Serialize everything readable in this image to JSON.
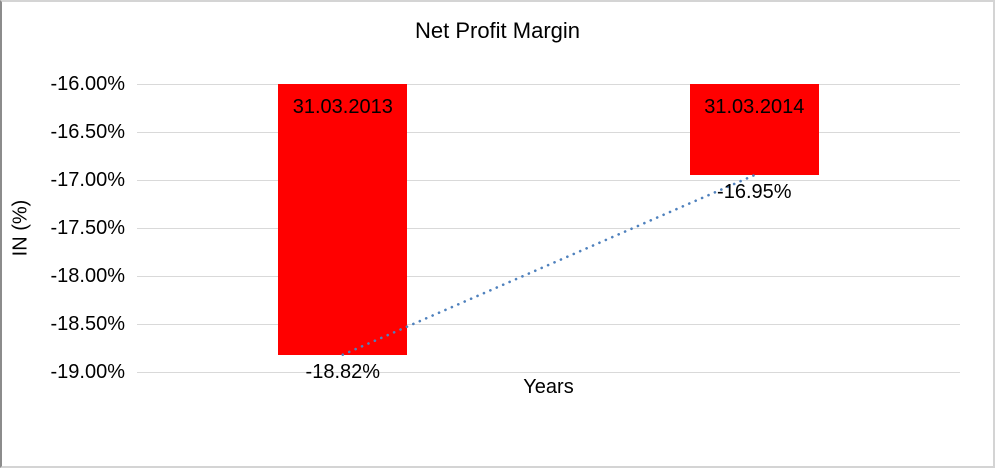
{
  "window": {
    "background": "#ffffff",
    "frame_border_color": "#d4d4d4"
  },
  "chart_data": {
    "type": "bar",
    "title": "Net Profit Margin",
    "xlabel": "Years",
    "ylabel": "IN (%)",
    "categories": [
      "31.03.2013",
      "31.03.2014"
    ],
    "series": [
      {
        "name": "Net Profit Margin",
        "values": [
          -18.82,
          -16.95
        ]
      }
    ],
    "value_labels": [
      "-18.82%",
      "-16.95%"
    ],
    "ylim": [
      -19.0,
      -16.0
    ],
    "ytick_step": 0.5,
    "ytick_labels": [
      "-16.00%",
      "-16.50%",
      "-17.00%",
      "-17.50%",
      "-18.00%",
      "-18.50%",
      "-19.00%"
    ],
    "grid": "horizontal",
    "gridline_color": "#d9d9d9",
    "bar_color": "#ff0000",
    "legend": "none",
    "trendline": {
      "type": "linear",
      "style": "dotted",
      "color": "#4f81bd",
      "from_value": -18.82,
      "to_value": -16.95
    }
  }
}
